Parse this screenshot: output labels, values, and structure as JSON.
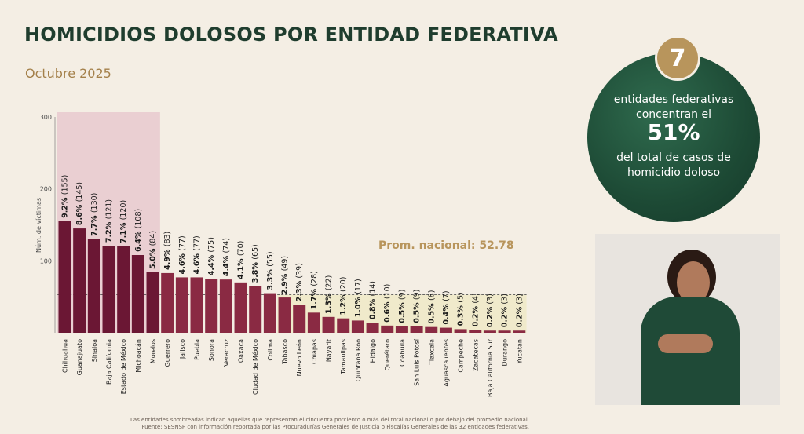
{
  "header": {
    "title": "HOMICIDIOS DOLOSOS POR ENTIDAD FEDERATIVA",
    "subtitle": "Octubre 2025"
  },
  "colors": {
    "dark_bar": "#6b1734",
    "light_bar": "#8a2a43",
    "shade_top": "#e7c9cf",
    "shade_bottom": "#efe9c9",
    "avg_label": "#b8955c",
    "circle": "#1d4a35",
    "title": "#1f3d2e",
    "subtitle": "#a4804a"
  },
  "chart_data": {
    "type": "bar",
    "ylabel": "Núm. de víctimas",
    "ylim": [
      0,
      300
    ],
    "yticks": [
      100,
      200,
      300
    ],
    "categories": [
      "Chihuahua",
      "Guanajuato",
      "Sinaloa",
      "Baja California",
      "Estado de México",
      "Michoacán",
      "Morelos",
      "Guerrero",
      "Jalisco",
      "Puebla",
      "Sonora",
      "Veracruz",
      "Oaxaca",
      "Ciudad de México",
      "Colima",
      "Tabasco",
      "Nuevo León",
      "Chiapas",
      "Nayarit",
      "Tamaulipas",
      "Quintana Roo",
      "Hidalgo",
      "Querétaro",
      "Coahuila",
      "San Luis Potosí",
      "Tlaxcala",
      "Aguascalientes",
      "Campeche",
      "Zacatecas",
      "Baja California Sur",
      "Durango",
      "Yucatán"
    ],
    "values": [
      155,
      145,
      130,
      121,
      120,
      108,
      84,
      83,
      77,
      77,
      75,
      74,
      70,
      65,
      55,
      49,
      39,
      28,
      22,
      20,
      17,
      14,
      10,
      9,
      9,
      8,
      7,
      5,
      4,
      3,
      3,
      3
    ],
    "pct_labels": [
      "9.2%",
      "8.6%",
      "7.7%",
      "7.2%",
      "7.1%",
      "6.4%",
      "5.0%",
      "4.9%",
      "4.6%",
      "4.6%",
      "4.4%",
      "4.4%",
      "4.1%",
      "3.8%",
      "3.3%",
      "2.9%",
      "2.3%",
      "1.7%",
      "1.3%",
      "1.2%",
      "1.0%",
      "0.8%",
      "0.6%",
      "0.5%",
      "0.5%",
      "0.5%",
      "0.4%",
      "0.3%",
      "0.2%",
      "0.2%",
      "0.2%",
      "0.2%"
    ],
    "count_labels": [
      "(155)",
      "(145)",
      "(130)",
      "(121)",
      "(120)",
      "(108)",
      "(84)",
      "(83)",
      "(77)",
      "(77)",
      "(75)",
      "(74)",
      "(70)",
      "(65)",
      "(55)",
      "(49)",
      "(39)",
      "(28)",
      "(22)",
      "(20)",
      "(17)",
      "(14)",
      "(10)",
      "(9)",
      "(9)",
      "(8)",
      "(7)",
      "(5)",
      "(4)",
      "(3)",
      "(3)",
      "(3)"
    ],
    "top_group_count": 7,
    "average": 52.78,
    "average_label": "Prom. nacional: 52.78"
  },
  "callout": {
    "badge": "7",
    "line1": "entidades federativas",
    "line2": "concentran el",
    "big": "51%",
    "line3": "del total de casos de",
    "line4": "homicidio doloso"
  },
  "footnotes": {
    "line1": "Las entidades sombreadas indican aquellas que representan el cincuenta porciento o más del total nacional o por debajo del promedio nacional.",
    "line2": "Fuente: SESNSP con información reportada por las Procuradurías Generales de Justicia o Fiscalías Generales de las 32 entidades federativas."
  }
}
